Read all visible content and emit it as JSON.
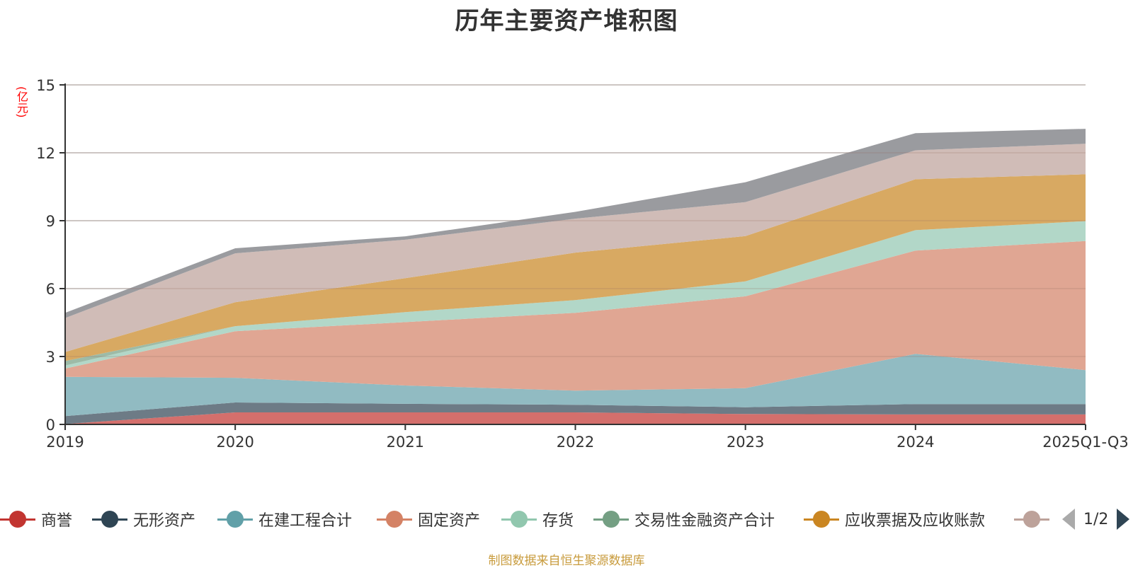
{
  "chart_data": {
    "type": "area",
    "stacked": true,
    "title": "历年主要资产堆积图",
    "ylabel": "(亿元)",
    "xlabel": "",
    "ylim": [
      0,
      15
    ],
    "yticks": [
      0,
      3,
      6,
      9,
      12,
      15
    ],
    "grid": true,
    "categories": [
      "2019",
      "2020",
      "2021",
      "2022",
      "2023",
      "2024",
      "2025Q1-Q3"
    ],
    "series": [
      {
        "name": "商誉",
        "color": "#c23531",
        "area_color": "#d46f6c",
        "values": [
          0.02,
          0.53,
          0.53,
          0.53,
          0.46,
          0.44,
          0.44
        ]
      },
      {
        "name": "无形资产",
        "color": "#2f4554",
        "area_color": "#6d7b86",
        "values": [
          0.35,
          0.44,
          0.38,
          0.34,
          0.3,
          0.46,
          0.46
        ]
      },
      {
        "name": "在建工程合计",
        "color": "#61a0a8",
        "area_color": "#91bbc2",
        "values": [
          1.73,
          1.09,
          0.81,
          0.62,
          0.84,
          2.22,
          1.5
        ]
      },
      {
        "name": "固定资产",
        "color": "#d48265",
        "area_color": "#e0a693",
        "values": [
          0.37,
          2.06,
          2.8,
          3.44,
          4.06,
          4.56,
          5.7
        ]
      },
      {
        "name": "存货",
        "color": "#91c7ae",
        "area_color": "#b2d7c8",
        "values": [
          0.13,
          0.22,
          0.44,
          0.56,
          0.66,
          0.9,
          0.88
        ]
      },
      {
        "name": "交易性金融资产合计",
        "color": "#749f83",
        "area_color": "#9dbba7",
        "values": [
          0.2,
          0.0,
          0.0,
          0.0,
          0.0,
          0.0,
          0.0
        ]
      },
      {
        "name": "应收票据及应收账款",
        "color": "#ca8622",
        "area_color": "#d8a962",
        "values": [
          0.4,
          1.06,
          1.5,
          2.1,
          2.0,
          2.25,
          2.07
        ]
      },
      {
        "name": "",
        "color": "#bda29a",
        "area_color": "#d0bcb7",
        "values": [
          1.5,
          2.16,
          1.7,
          1.5,
          1.5,
          1.28,
          1.35
        ]
      },
      {
        "name": "",
        "color": "#6e7074",
        "area_color": "#9a9b9f",
        "values": [
          0.23,
          0.22,
          0.15,
          0.3,
          0.88,
          0.76,
          0.66
        ]
      }
    ],
    "legend_position": "bottom",
    "legend_page": "1/2"
  },
  "source_note": "制图数据来自恒生聚源数据库"
}
